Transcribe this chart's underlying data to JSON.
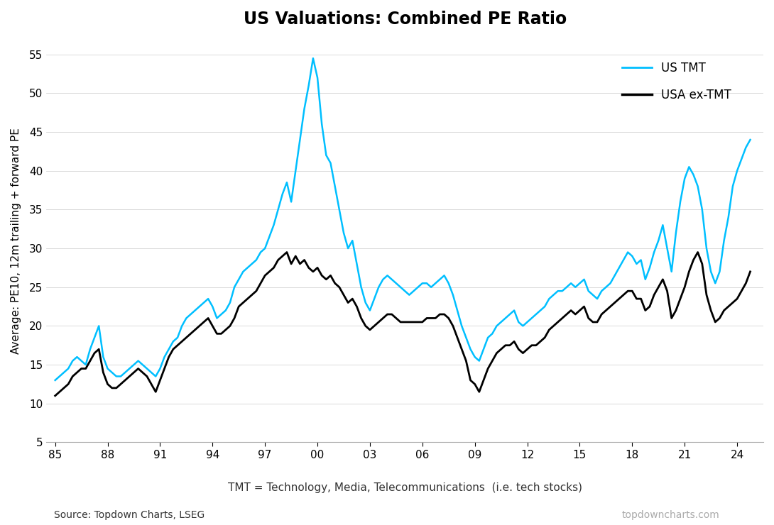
{
  "title": "US Valuations: Combined PE Ratio",
  "ylabel": "Average: PE10, 12m trailing + forward PE",
  "xlabel_note": "TMT = Technology, Media, Telecommunications  (i.e. tech stocks)",
  "source_left": "Source: Topdown Charts, LSEG",
  "source_right": "topdowncharts.com",
  "ylim": [
    5,
    57
  ],
  "yticks": [
    5,
    10,
    15,
    20,
    25,
    30,
    35,
    40,
    45,
    50,
    55
  ],
  "xticks": [
    1985,
    1988,
    1991,
    1994,
    1997,
    2000,
    2003,
    2006,
    2009,
    2012,
    2015,
    2018,
    2021,
    2024
  ],
  "xlim_start": 1984.5,
  "xlim_end": 2025.5,
  "color_tmt": "#00BFFF",
  "color_extmt": "#000000",
  "legend_tmt": "US TMT",
  "legend_extmt": "USA ex-TMT",
  "tmt_data": [
    [
      1985.0,
      13.0
    ],
    [
      1985.25,
      13.5
    ],
    [
      1985.5,
      14.0
    ],
    [
      1985.75,
      14.5
    ],
    [
      1986.0,
      15.5
    ],
    [
      1986.25,
      16.0
    ],
    [
      1986.5,
      15.5
    ],
    [
      1986.75,
      15.0
    ],
    [
      1987.0,
      17.0
    ],
    [
      1987.25,
      18.5
    ],
    [
      1987.5,
      20.0
    ],
    [
      1987.75,
      16.0
    ],
    [
      1988.0,
      14.5
    ],
    [
      1988.25,
      14.0
    ],
    [
      1988.5,
      13.5
    ],
    [
      1988.75,
      13.5
    ],
    [
      1989.0,
      14.0
    ],
    [
      1989.25,
      14.5
    ],
    [
      1989.5,
      15.0
    ],
    [
      1989.75,
      15.5
    ],
    [
      1990.0,
      15.0
    ],
    [
      1990.25,
      14.5
    ],
    [
      1990.5,
      14.0
    ],
    [
      1990.75,
      13.5
    ],
    [
      1991.0,
      14.5
    ],
    [
      1991.25,
      16.0
    ],
    [
      1991.5,
      17.0
    ],
    [
      1991.75,
      18.0
    ],
    [
      1992.0,
      18.5
    ],
    [
      1992.25,
      20.0
    ],
    [
      1992.5,
      21.0
    ],
    [
      1992.75,
      21.5
    ],
    [
      1993.0,
      22.0
    ],
    [
      1993.25,
      22.5
    ],
    [
      1993.5,
      23.0
    ],
    [
      1993.75,
      23.5
    ],
    [
      1994.0,
      22.5
    ],
    [
      1994.25,
      21.0
    ],
    [
      1994.5,
      21.5
    ],
    [
      1994.75,
      22.0
    ],
    [
      1995.0,
      23.0
    ],
    [
      1995.25,
      25.0
    ],
    [
      1995.5,
      26.0
    ],
    [
      1995.75,
      27.0
    ],
    [
      1996.0,
      27.5
    ],
    [
      1996.25,
      28.0
    ],
    [
      1996.5,
      28.5
    ],
    [
      1996.75,
      29.5
    ],
    [
      1997.0,
      30.0
    ],
    [
      1997.25,
      31.5
    ],
    [
      1997.5,
      33.0
    ],
    [
      1997.75,
      35.0
    ],
    [
      1998.0,
      37.0
    ],
    [
      1998.25,
      38.5
    ],
    [
      1998.5,
      36.0
    ],
    [
      1998.75,
      40.0
    ],
    [
      1999.0,
      44.0
    ],
    [
      1999.25,
      48.0
    ],
    [
      1999.5,
      51.0
    ],
    [
      1999.75,
      54.5
    ],
    [
      2000.0,
      52.0
    ],
    [
      2000.25,
      46.0
    ],
    [
      2000.5,
      42.0
    ],
    [
      2000.75,
      41.0
    ],
    [
      2001.0,
      38.0
    ],
    [
      2001.25,
      35.0
    ],
    [
      2001.5,
      32.0
    ],
    [
      2001.75,
      30.0
    ],
    [
      2002.0,
      31.0
    ],
    [
      2002.25,
      28.0
    ],
    [
      2002.5,
      25.0
    ],
    [
      2002.75,
      23.0
    ],
    [
      2003.0,
      22.0
    ],
    [
      2003.25,
      23.5
    ],
    [
      2003.5,
      25.0
    ],
    [
      2003.75,
      26.0
    ],
    [
      2004.0,
      26.5
    ],
    [
      2004.25,
      26.0
    ],
    [
      2004.5,
      25.5
    ],
    [
      2004.75,
      25.0
    ],
    [
      2005.0,
      24.5
    ],
    [
      2005.25,
      24.0
    ],
    [
      2005.5,
      24.5
    ],
    [
      2005.75,
      25.0
    ],
    [
      2006.0,
      25.5
    ],
    [
      2006.25,
      25.5
    ],
    [
      2006.5,
      25.0
    ],
    [
      2006.75,
      25.5
    ],
    [
      2007.0,
      26.0
    ],
    [
      2007.25,
      26.5
    ],
    [
      2007.5,
      25.5
    ],
    [
      2007.75,
      24.0
    ],
    [
      2008.0,
      22.0
    ],
    [
      2008.25,
      20.0
    ],
    [
      2008.5,
      18.5
    ],
    [
      2008.75,
      17.0
    ],
    [
      2009.0,
      16.0
    ],
    [
      2009.25,
      15.5
    ],
    [
      2009.5,
      17.0
    ],
    [
      2009.75,
      18.5
    ],
    [
      2010.0,
      19.0
    ],
    [
      2010.25,
      20.0
    ],
    [
      2010.5,
      20.5
    ],
    [
      2010.75,
      21.0
    ],
    [
      2011.0,
      21.5
    ],
    [
      2011.25,
      22.0
    ],
    [
      2011.5,
      20.5
    ],
    [
      2011.75,
      20.0
    ],
    [
      2012.0,
      20.5
    ],
    [
      2012.25,
      21.0
    ],
    [
      2012.5,
      21.5
    ],
    [
      2012.75,
      22.0
    ],
    [
      2013.0,
      22.5
    ],
    [
      2013.25,
      23.5
    ],
    [
      2013.5,
      24.0
    ],
    [
      2013.75,
      24.5
    ],
    [
      2014.0,
      24.5
    ],
    [
      2014.25,
      25.0
    ],
    [
      2014.5,
      25.5
    ],
    [
      2014.75,
      25.0
    ],
    [
      2015.0,
      25.5
    ],
    [
      2015.25,
      26.0
    ],
    [
      2015.5,
      24.5
    ],
    [
      2015.75,
      24.0
    ],
    [
      2016.0,
      23.5
    ],
    [
      2016.25,
      24.5
    ],
    [
      2016.5,
      25.0
    ],
    [
      2016.75,
      25.5
    ],
    [
      2017.0,
      26.5
    ],
    [
      2017.25,
      27.5
    ],
    [
      2017.5,
      28.5
    ],
    [
      2017.75,
      29.5
    ],
    [
      2018.0,
      29.0
    ],
    [
      2018.25,
      28.0
    ],
    [
      2018.5,
      28.5
    ],
    [
      2018.75,
      26.0
    ],
    [
      2019.0,
      27.5
    ],
    [
      2019.25,
      29.5
    ],
    [
      2019.5,
      31.0
    ],
    [
      2019.75,
      33.0
    ],
    [
      2020.0,
      30.0
    ],
    [
      2020.25,
      27.0
    ],
    [
      2020.5,
      32.0
    ],
    [
      2020.75,
      36.0
    ],
    [
      2021.0,
      39.0
    ],
    [
      2021.25,
      40.5
    ],
    [
      2021.5,
      39.5
    ],
    [
      2021.75,
      38.0
    ],
    [
      2022.0,
      35.0
    ],
    [
      2022.25,
      30.0
    ],
    [
      2022.5,
      27.0
    ],
    [
      2022.75,
      25.5
    ],
    [
      2023.0,
      27.0
    ],
    [
      2023.25,
      31.0
    ],
    [
      2023.5,
      34.0
    ],
    [
      2023.75,
      38.0
    ],
    [
      2024.0,
      40.0
    ],
    [
      2024.25,
      41.5
    ],
    [
      2024.5,
      43.0
    ],
    [
      2024.75,
      44.0
    ]
  ],
  "extmt_data": [
    [
      1985.0,
      11.0
    ],
    [
      1985.25,
      11.5
    ],
    [
      1985.5,
      12.0
    ],
    [
      1985.75,
      12.5
    ],
    [
      1986.0,
      13.5
    ],
    [
      1986.25,
      14.0
    ],
    [
      1986.5,
      14.5
    ],
    [
      1986.75,
      14.5
    ],
    [
      1987.0,
      15.5
    ],
    [
      1987.25,
      16.5
    ],
    [
      1987.5,
      17.0
    ],
    [
      1987.75,
      14.0
    ],
    [
      1988.0,
      12.5
    ],
    [
      1988.25,
      12.0
    ],
    [
      1988.5,
      12.0
    ],
    [
      1988.75,
      12.5
    ],
    [
      1989.0,
      13.0
    ],
    [
      1989.25,
      13.5
    ],
    [
      1989.5,
      14.0
    ],
    [
      1989.75,
      14.5
    ],
    [
      1990.0,
      14.0
    ],
    [
      1990.25,
      13.5
    ],
    [
      1990.5,
      12.5
    ],
    [
      1990.75,
      11.5
    ],
    [
      1991.0,
      13.0
    ],
    [
      1991.25,
      14.5
    ],
    [
      1991.5,
      16.0
    ],
    [
      1991.75,
      17.0
    ],
    [
      1992.0,
      17.5
    ],
    [
      1992.25,
      18.0
    ],
    [
      1992.5,
      18.5
    ],
    [
      1992.75,
      19.0
    ],
    [
      1993.0,
      19.5
    ],
    [
      1993.25,
      20.0
    ],
    [
      1993.5,
      20.5
    ],
    [
      1993.75,
      21.0
    ],
    [
      1994.0,
      20.0
    ],
    [
      1994.25,
      19.0
    ],
    [
      1994.5,
      19.0
    ],
    [
      1994.75,
      19.5
    ],
    [
      1995.0,
      20.0
    ],
    [
      1995.25,
      21.0
    ],
    [
      1995.5,
      22.5
    ],
    [
      1995.75,
      23.0
    ],
    [
      1996.0,
      23.5
    ],
    [
      1996.25,
      24.0
    ],
    [
      1996.5,
      24.5
    ],
    [
      1996.75,
      25.5
    ],
    [
      1997.0,
      26.5
    ],
    [
      1997.25,
      27.0
    ],
    [
      1997.5,
      27.5
    ],
    [
      1997.75,
      28.5
    ],
    [
      1998.0,
      29.0
    ],
    [
      1998.25,
      29.5
    ],
    [
      1998.5,
      28.0
    ],
    [
      1998.75,
      29.0
    ],
    [
      1999.0,
      28.0
    ],
    [
      1999.25,
      28.5
    ],
    [
      1999.5,
      27.5
    ],
    [
      1999.75,
      27.0
    ],
    [
      2000.0,
      27.5
    ],
    [
      2000.25,
      26.5
    ],
    [
      2000.5,
      26.0
    ],
    [
      2000.75,
      26.5
    ],
    [
      2001.0,
      25.5
    ],
    [
      2001.25,
      25.0
    ],
    [
      2001.5,
      24.0
    ],
    [
      2001.75,
      23.0
    ],
    [
      2002.0,
      23.5
    ],
    [
      2002.25,
      22.5
    ],
    [
      2002.5,
      21.0
    ],
    [
      2002.75,
      20.0
    ],
    [
      2003.0,
      19.5
    ],
    [
      2003.25,
      20.0
    ],
    [
      2003.5,
      20.5
    ],
    [
      2003.75,
      21.0
    ],
    [
      2004.0,
      21.5
    ],
    [
      2004.25,
      21.5
    ],
    [
      2004.5,
      21.0
    ],
    [
      2004.75,
      20.5
    ],
    [
      2005.0,
      20.5
    ],
    [
      2005.25,
      20.5
    ],
    [
      2005.5,
      20.5
    ],
    [
      2005.75,
      20.5
    ],
    [
      2006.0,
      20.5
    ],
    [
      2006.25,
      21.0
    ],
    [
      2006.5,
      21.0
    ],
    [
      2006.75,
      21.0
    ],
    [
      2007.0,
      21.5
    ],
    [
      2007.25,
      21.5
    ],
    [
      2007.5,
      21.0
    ],
    [
      2007.75,
      20.0
    ],
    [
      2008.0,
      18.5
    ],
    [
      2008.25,
      17.0
    ],
    [
      2008.5,
      15.5
    ],
    [
      2008.75,
      13.0
    ],
    [
      2009.0,
      12.5
    ],
    [
      2009.25,
      11.5
    ],
    [
      2009.5,
      13.0
    ],
    [
      2009.75,
      14.5
    ],
    [
      2010.0,
      15.5
    ],
    [
      2010.25,
      16.5
    ],
    [
      2010.5,
      17.0
    ],
    [
      2010.75,
      17.5
    ],
    [
      2011.0,
      17.5
    ],
    [
      2011.25,
      18.0
    ],
    [
      2011.5,
      17.0
    ],
    [
      2011.75,
      16.5
    ],
    [
      2012.0,
      17.0
    ],
    [
      2012.25,
      17.5
    ],
    [
      2012.5,
      17.5
    ],
    [
      2012.75,
      18.0
    ],
    [
      2013.0,
      18.5
    ],
    [
      2013.25,
      19.5
    ],
    [
      2013.5,
      20.0
    ],
    [
      2013.75,
      20.5
    ],
    [
      2014.0,
      21.0
    ],
    [
      2014.25,
      21.5
    ],
    [
      2014.5,
      22.0
    ],
    [
      2014.75,
      21.5
    ],
    [
      2015.0,
      22.0
    ],
    [
      2015.25,
      22.5
    ],
    [
      2015.5,
      21.0
    ],
    [
      2015.75,
      20.5
    ],
    [
      2016.0,
      20.5
    ],
    [
      2016.25,
      21.5
    ],
    [
      2016.5,
      22.0
    ],
    [
      2016.75,
      22.5
    ],
    [
      2017.0,
      23.0
    ],
    [
      2017.25,
      23.5
    ],
    [
      2017.5,
      24.0
    ],
    [
      2017.75,
      24.5
    ],
    [
      2018.0,
      24.5
    ],
    [
      2018.25,
      23.5
    ],
    [
      2018.5,
      23.5
    ],
    [
      2018.75,
      22.0
    ],
    [
      2019.0,
      22.5
    ],
    [
      2019.25,
      24.0
    ],
    [
      2019.5,
      25.0
    ],
    [
      2019.75,
      26.0
    ],
    [
      2020.0,
      24.5
    ],
    [
      2020.25,
      21.0
    ],
    [
      2020.5,
      22.0
    ],
    [
      2020.75,
      23.5
    ],
    [
      2021.0,
      25.0
    ],
    [
      2021.25,
      27.0
    ],
    [
      2021.5,
      28.5
    ],
    [
      2021.75,
      29.5
    ],
    [
      2022.0,
      28.0
    ],
    [
      2022.25,
      24.0
    ],
    [
      2022.5,
      22.0
    ],
    [
      2022.75,
      20.5
    ],
    [
      2023.0,
      21.0
    ],
    [
      2023.25,
      22.0
    ],
    [
      2023.5,
      22.5
    ],
    [
      2023.75,
      23.0
    ],
    [
      2024.0,
      23.5
    ],
    [
      2024.25,
      24.5
    ],
    [
      2024.5,
      25.5
    ],
    [
      2024.75,
      27.0
    ]
  ]
}
